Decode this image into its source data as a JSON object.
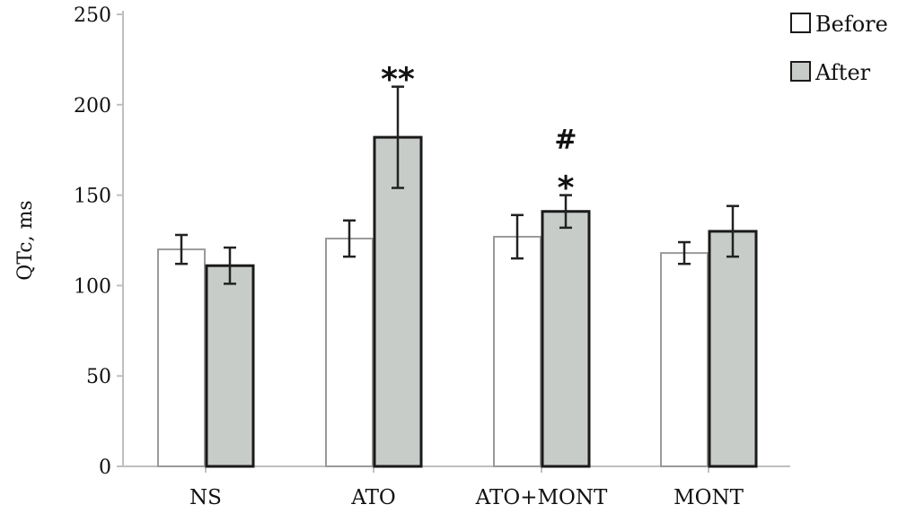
{
  "chart_data": {
    "type": "bar",
    "title": "",
    "xlabel": "",
    "ylabel": "QTc, ms",
    "ylim": [
      0,
      250
    ],
    "yticks": [
      0,
      50,
      100,
      150,
      200,
      250
    ],
    "categories": [
      "NS",
      "ATO",
      "ATO+MONT",
      "MONT"
    ],
    "series": [
      {
        "name": "Before",
        "color": "#ffffff",
        "values": [
          120,
          126,
          127,
          118
        ],
        "errors": [
          8,
          10,
          12,
          6
        ]
      },
      {
        "name": "After",
        "color": "#c8ccc8",
        "values": [
          111,
          182,
          141,
          130
        ],
        "errors": [
          10,
          28,
          9,
          14
        ]
      }
    ],
    "annotations": [
      {
        "category": "ATO",
        "series": "After",
        "lines": [
          "**"
        ]
      },
      {
        "category": "ATO+MONT",
        "series": "After",
        "lines": [
          "#",
          "*"
        ]
      }
    ],
    "legend": "top-right",
    "grid": false
  }
}
